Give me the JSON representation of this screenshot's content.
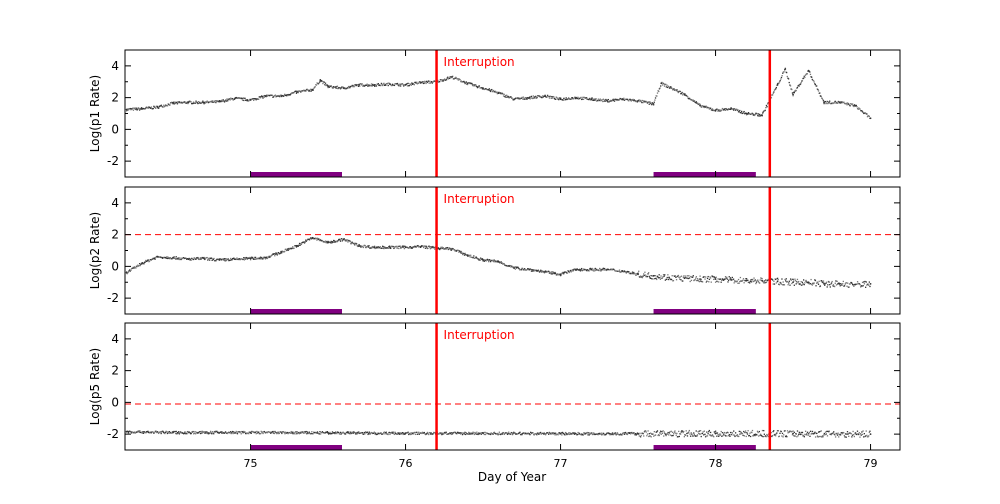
{
  "chart_data": {
    "type": "scatter",
    "xlabel": "Day of Year",
    "xlim": [
      74.19,
      79.19
    ],
    "xticks": [
      75,
      76,
      77,
      78,
      79
    ],
    "grid": false,
    "colors": {
      "points": "#333333",
      "interruption": "#ff0000",
      "threshold": "#ff0000",
      "bar": "#800080"
    },
    "interruptions": [
      76.2,
      78.35
    ],
    "interruption_label": "Interruption",
    "bars": [
      [
        75.0,
        75.59
      ],
      [
        77.6,
        78.26
      ]
    ],
    "panels": [
      {
        "ylabel": "Log(p1 Rate)",
        "ylim": [
          -3,
          5
        ],
        "yticks": [
          -2,
          0,
          2,
          4
        ],
        "threshold": null,
        "x": [
          74.2,
          74.3,
          74.4,
          74.5,
          74.6,
          74.7,
          74.8,
          74.9,
          75.0,
          75.1,
          75.2,
          75.3,
          75.4,
          75.45,
          75.5,
          75.6,
          75.7,
          75.8,
          75.9,
          76.0,
          76.1,
          76.2,
          76.3,
          76.4,
          76.5,
          76.6,
          76.7,
          76.8,
          76.9,
          77.0,
          77.1,
          77.2,
          77.3,
          77.4,
          77.5,
          77.6,
          77.65,
          77.8,
          77.9,
          78.0,
          78.1,
          78.2,
          78.3,
          78.4,
          78.45,
          78.5,
          78.6,
          78.7,
          78.8,
          78.9,
          79.0
        ],
        "y": [
          1.25,
          1.3,
          1.4,
          1.65,
          1.7,
          1.7,
          1.75,
          1.95,
          1.85,
          2.1,
          2.1,
          2.35,
          2.5,
          3.1,
          2.7,
          2.6,
          2.8,
          2.8,
          2.85,
          2.8,
          2.95,
          3.0,
          3.3,
          2.9,
          2.6,
          2.3,
          1.9,
          2.0,
          2.1,
          1.9,
          2.0,
          1.9,
          1.8,
          1.9,
          1.8,
          1.6,
          2.9,
          2.2,
          1.5,
          1.2,
          1.3,
          1.0,
          0.9,
          2.8,
          3.8,
          2.2,
          3.7,
          1.7,
          1.7,
          1.5,
          0.7
        ]
      },
      {
        "ylabel": "Log(p2 Rate)",
        "ylim": [
          -3,
          5
        ],
        "yticks": [
          -2,
          0,
          2,
          4
        ],
        "threshold": 2,
        "x": [
          74.2,
          74.3,
          74.4,
          74.5,
          74.6,
          74.7,
          74.8,
          74.9,
          75.0,
          75.1,
          75.2,
          75.3,
          75.4,
          75.5,
          75.6,
          75.7,
          75.8,
          75.9,
          76.0,
          76.1,
          76.2,
          76.3,
          76.4,
          76.5,
          76.6,
          76.7,
          76.8,
          76.9,
          77.0,
          77.1,
          77.2,
          77.3,
          77.4,
          77.5,
          77.6,
          77.7,
          77.8,
          77.9,
          78.0,
          78.1,
          78.2,
          78.3,
          78.4,
          78.5,
          78.6,
          78.7,
          78.8,
          78.9,
          79.0
        ],
        "y": [
          -0.4,
          0.2,
          0.6,
          0.55,
          0.45,
          0.5,
          0.4,
          0.45,
          0.5,
          0.55,
          0.9,
          1.3,
          1.8,
          1.5,
          1.7,
          1.3,
          1.2,
          1.2,
          1.2,
          1.25,
          1.15,
          1.1,
          0.7,
          0.4,
          0.3,
          -0.1,
          -0.2,
          -0.35,
          -0.5,
          -0.2,
          -0.2,
          -0.2,
          -0.3,
          -0.5,
          -0.6,
          -0.7,
          -0.75,
          -0.8,
          -0.8,
          -0.85,
          -0.9,
          -0.9,
          -0.95,
          -1.0,
          -1.0,
          -1.1,
          -1.1,
          -1.15,
          -1.1
        ]
      },
      {
        "ylabel": "Log(p5 Rate)",
        "ylim": [
          -3,
          5
        ],
        "yticks": [
          -2,
          0,
          2,
          4
        ],
        "threshold": -0.1,
        "x": [
          74.2,
          74.5,
          75.0,
          75.5,
          76.0,
          76.5,
          77.0,
          77.5,
          78.0,
          78.5,
          79.0
        ],
        "y": [
          -1.85,
          -1.9,
          -1.9,
          -1.92,
          -1.95,
          -1.95,
          -1.97,
          -1.97,
          -1.97,
          -1.97,
          -2.0
        ]
      }
    ]
  }
}
